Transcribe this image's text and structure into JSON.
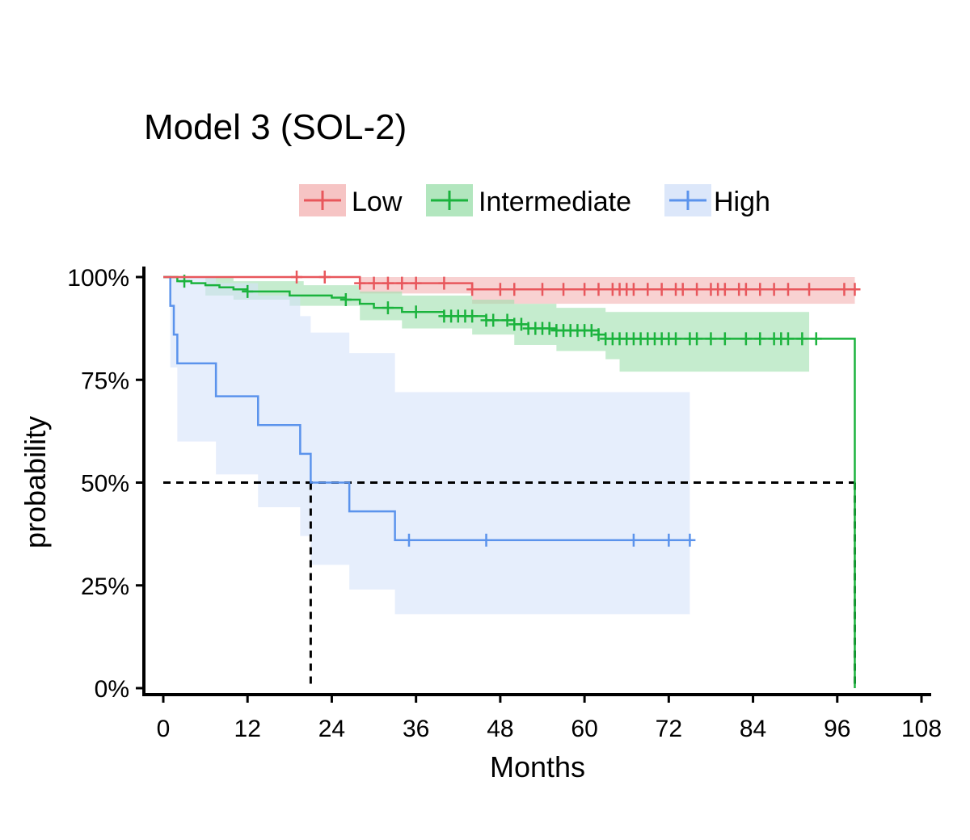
{
  "chart_data": {
    "type": "line",
    "subtype": "kaplan-meier",
    "title": "Model 3 (SOL-2)",
    "xlabel": "Months",
    "ylabel": "probability",
    "xlim": [
      0,
      108
    ],
    "ylim": [
      0,
      1
    ],
    "x_ticks": [
      0,
      12,
      24,
      36,
      48,
      60,
      72,
      84,
      96,
      108
    ],
    "y_ticks": [
      0,
      0.25,
      0.5,
      0.75,
      1.0
    ],
    "y_tick_labels": [
      "0%",
      "25%",
      "50%",
      "75%",
      "100%"
    ],
    "grid": false,
    "legend_position": "top",
    "median_line": {
      "y": 0.5,
      "x_high": 21,
      "x_intermediate": 98.5,
      "style": "dashed"
    },
    "series": [
      {
        "name": "Low",
        "color": "#e8575c",
        "band_color": "#f4b3b3",
        "steps": [
          [
            0,
            1.0
          ],
          [
            28,
            0.985
          ],
          [
            44,
            0.97
          ],
          [
            98.5,
            0.97
          ]
        ],
        "ci_upper": [
          [
            0,
            1.0
          ],
          [
            28,
            1.0
          ],
          [
            44,
            1.0
          ],
          [
            98.5,
            1.0
          ]
        ],
        "ci_lower": [
          [
            0,
            1.0
          ],
          [
            28,
            0.96
          ],
          [
            44,
            0.935
          ],
          [
            92,
            0.935
          ],
          [
            98.5,
            0.935
          ]
        ],
        "censored": [
          19,
          23,
          28,
          30,
          32,
          34,
          36,
          40,
          44,
          48,
          50,
          54,
          57,
          60,
          62,
          64,
          65,
          66,
          67,
          69,
          71,
          73,
          74,
          76,
          78,
          79,
          80,
          82,
          83,
          85,
          87,
          89,
          92,
          97,
          98.5
        ]
      },
      {
        "name": "Intermediate",
        "color": "#1bb33d",
        "band_color": "#9fdfae",
        "steps": [
          [
            0,
            1.0
          ],
          [
            2,
            0.99
          ],
          [
            4,
            0.985
          ],
          [
            6,
            0.98
          ],
          [
            8,
            0.975
          ],
          [
            10,
            0.97
          ],
          [
            12,
            0.965
          ],
          [
            18,
            0.955
          ],
          [
            24,
            0.95
          ],
          [
            26,
            0.945
          ],
          [
            28,
            0.935
          ],
          [
            30,
            0.925
          ],
          [
            34,
            0.915
          ],
          [
            40,
            0.905
          ],
          [
            46,
            0.895
          ],
          [
            50,
            0.885
          ],
          [
            52,
            0.875
          ],
          [
            56,
            0.87
          ],
          [
            62,
            0.86
          ],
          [
            63,
            0.85
          ],
          [
            98.5,
            0.85
          ],
          [
            98.5,
            0.0
          ]
        ],
        "ci_upper": [
          [
            0,
            1.0
          ],
          [
            6,
            1.0
          ],
          [
            10,
            0.99
          ],
          [
            20,
            0.98
          ],
          [
            28,
            0.965
          ],
          [
            34,
            0.955
          ],
          [
            44,
            0.945
          ],
          [
            50,
            0.935
          ],
          [
            56,
            0.925
          ],
          [
            63,
            0.915
          ],
          [
            92,
            0.915
          ]
        ],
        "ci_lower": [
          [
            0,
            1.0
          ],
          [
            6,
            0.955
          ],
          [
            10,
            0.945
          ],
          [
            18,
            0.93
          ],
          [
            28,
            0.895
          ],
          [
            34,
            0.875
          ],
          [
            44,
            0.86
          ],
          [
            50,
            0.835
          ],
          [
            56,
            0.82
          ],
          [
            63,
            0.8
          ],
          [
            65,
            0.77
          ],
          [
            92,
            0.77
          ]
        ],
        "censored": [
          3,
          12,
          26,
          32,
          36,
          40,
          41,
          42,
          43,
          44,
          46,
          47,
          49,
          50,
          51,
          52,
          53,
          54,
          55,
          56,
          57,
          58,
          59,
          60,
          61,
          62,
          63,
          64,
          65,
          66,
          67,
          68,
          69,
          70,
          71,
          72,
          73,
          75,
          76,
          78,
          80,
          83,
          85,
          87,
          88,
          89,
          91,
          93
        ]
      },
      {
        "name": "High",
        "color": "#5b93ec",
        "band_color": "#d6e3fa",
        "steps": [
          [
            0,
            1.0
          ],
          [
            1,
            0.93
          ],
          [
            1.5,
            0.86
          ],
          [
            2,
            0.79
          ],
          [
            7.5,
            0.71
          ],
          [
            13.5,
            0.64
          ],
          [
            19.5,
            0.57
          ],
          [
            21,
            0.5
          ],
          [
            26.5,
            0.43
          ],
          [
            33,
            0.36
          ],
          [
            75,
            0.36
          ]
        ],
        "ci_upper": [
          [
            0,
            1.0
          ],
          [
            1,
            1.0
          ],
          [
            7.5,
            0.985
          ],
          [
            13.5,
            0.955
          ],
          [
            19.5,
            0.905
          ],
          [
            21,
            0.865
          ],
          [
            26.5,
            0.815
          ],
          [
            33,
            0.72
          ],
          [
            75,
            0.72
          ]
        ],
        "ci_lower": [
          [
            0,
            1.0
          ],
          [
            1,
            0.78
          ],
          [
            2,
            0.6
          ],
          [
            7.5,
            0.52
          ],
          [
            13.5,
            0.44
          ],
          [
            19.5,
            0.37
          ],
          [
            21,
            0.3
          ],
          [
            26.5,
            0.24
          ],
          [
            33,
            0.18
          ],
          [
            75,
            0.18
          ]
        ],
        "censored": [
          35,
          46,
          67,
          72,
          75
        ]
      }
    ]
  }
}
